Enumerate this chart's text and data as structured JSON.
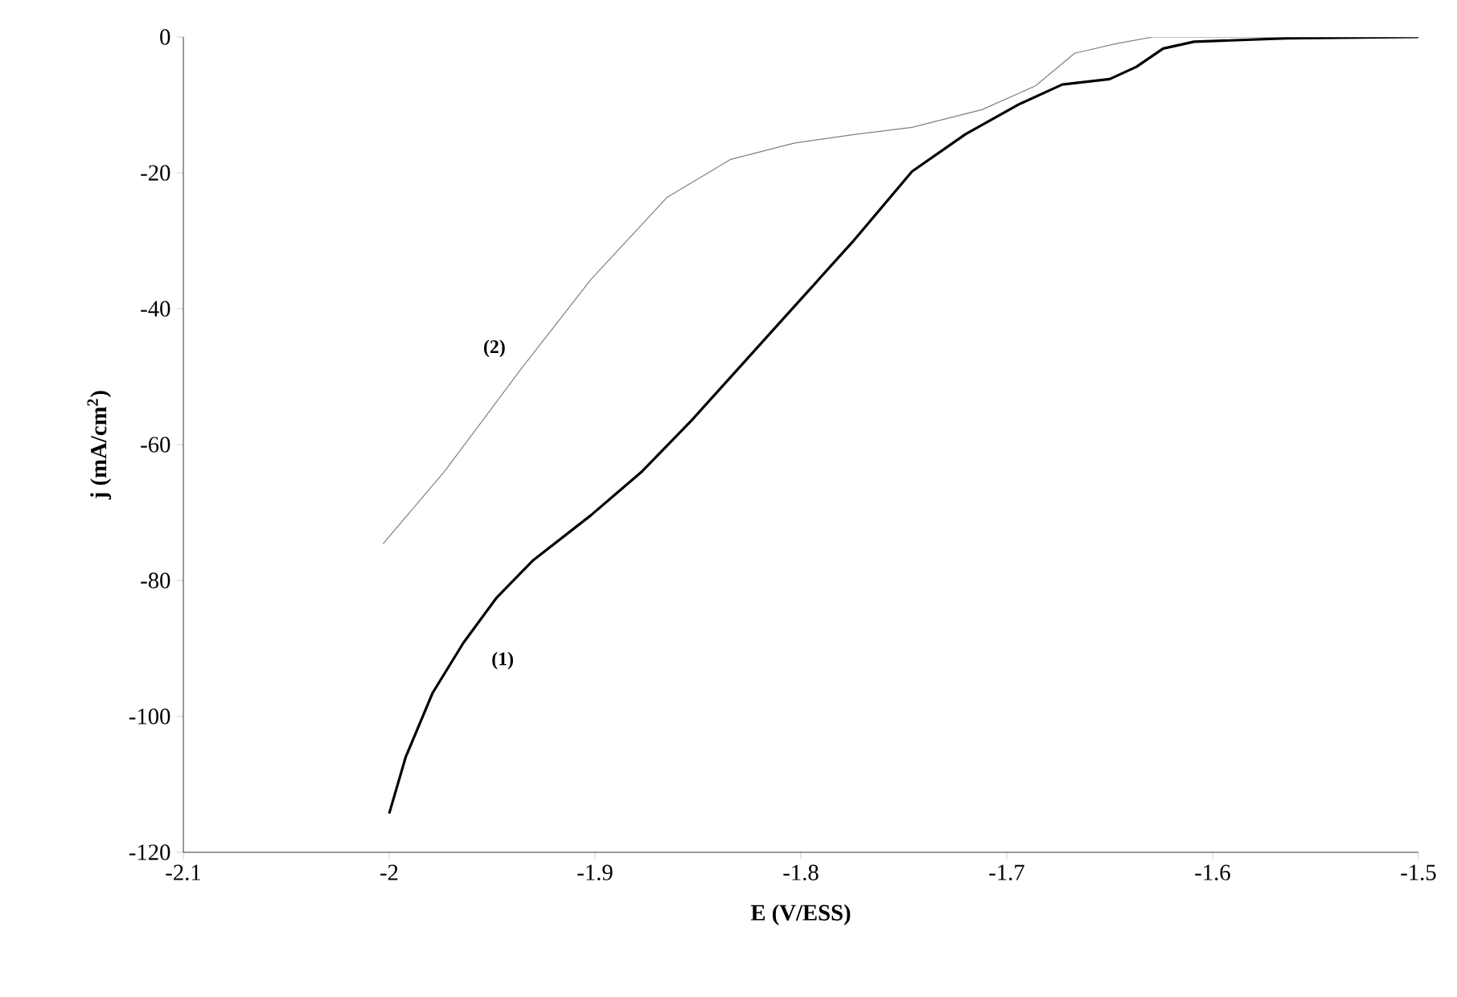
{
  "chart_data": {
    "type": "line",
    "xlabel": "E (V/ESS)",
    "ylabel": "j (mA/cm$^{2}$)",
    "xlim": [
      -2.1,
      -1.5
    ],
    "xticks": [
      -2.1,
      -2,
      -1.9,
      -1.8,
      -1.7,
      -1.6,
      -1.5
    ],
    "ylim": [
      -120,
      0
    ],
    "yticks": [
      -120,
      -100,
      -80,
      -60,
      -40,
      -20,
      0
    ],
    "grid": false,
    "legend": false,
    "marker": "none",
    "line_style": "solid",
    "series": [
      {
        "name": "(1)",
        "color": "#000000",
        "x": [
          -2.0,
          -1.992,
          -1.979,
          -1.964,
          -1.948,
          -1.93,
          -1.902,
          -1.877,
          -1.853,
          -1.825,
          -1.8,
          -1.775,
          -1.746,
          -1.72,
          -1.694,
          -1.673,
          -1.65,
          -1.637,
          -1.624,
          -1.609,
          -1.564,
          -1.5
        ],
        "values": [
          -114.3,
          -106,
          -96.6,
          -89.2,
          -82.6,
          -77,
          -70.4,
          -63.9,
          -56.4,
          -47,
          -38.6,
          -30.2,
          -19.8,
          -14.3,
          -9.9,
          -7,
          -6.2,
          -4.4,
          -1.7,
          -0.7,
          -0.2,
          0
        ]
      },
      {
        "name": "(2)",
        "color": "#808080",
        "x": [
          -2.003,
          -1.973,
          -1.936,
          -1.902,
          -1.865,
          -1.834,
          -1.803,
          -1.775,
          -1.746,
          -1.712,
          -1.686,
          -1.667,
          -1.647,
          -1.629,
          -1.5
        ],
        "values": [
          -74.6,
          -63.9,
          -48.9,
          -35.7,
          -23.6,
          -18,
          -15.6,
          -14.4,
          -13.3,
          -10.7,
          -7.2,
          -2.4,
          -1,
          0,
          0
        ]
      }
    ]
  }
}
